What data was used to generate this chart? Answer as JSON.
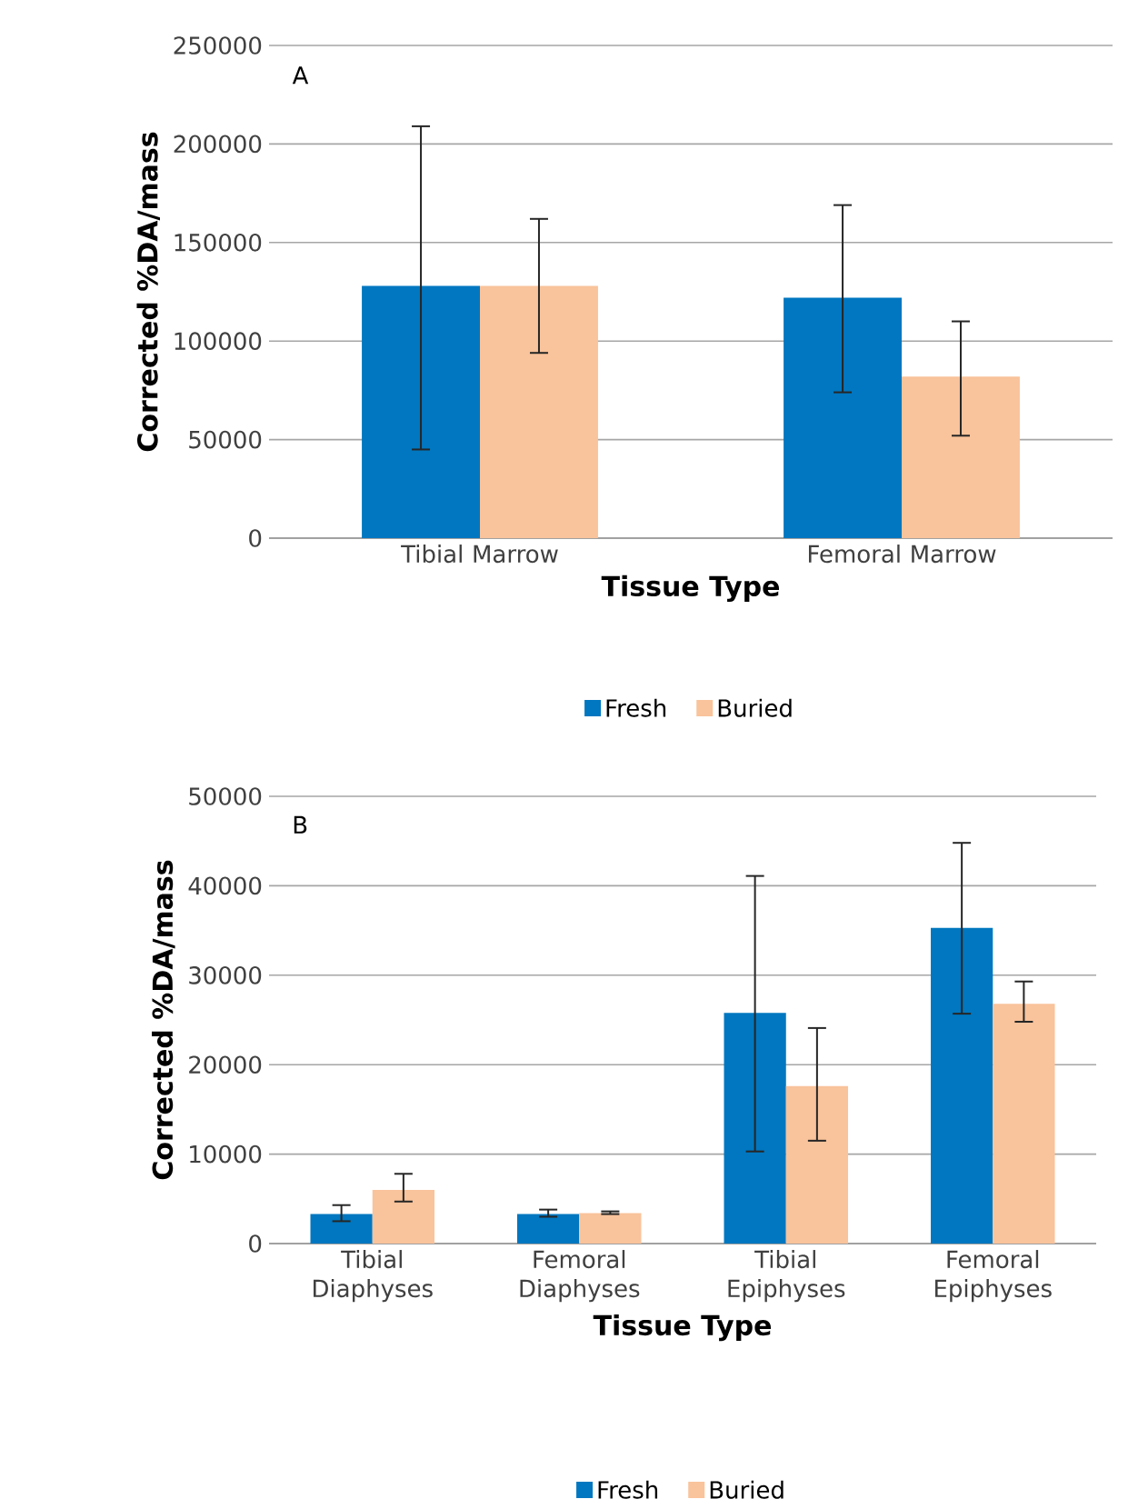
{
  "chart_data": [
    {
      "type": "bar",
      "xlabel": "Tissue Type",
      "ylabel": "Corrected %DA/mass",
      "categories": [
        "Tibial Marrow",
        "Femoral Marrow"
      ],
      "series": [
        {
          "name": "Fresh",
          "color": "#0077c0",
          "values": [
            128000,
            122000
          ],
          "errors": [
            [
              45000,
              209000
            ],
            [
              74000,
              169000
            ]
          ]
        },
        {
          "name": "Buried",
          "color": "#f9c39b",
          "values": [
            128000,
            82000
          ],
          "errors": [
            [
              94000,
              162000
            ],
            [
              52000,
              110000
            ]
          ]
        }
      ],
      "ylim": [
        0,
        250000
      ],
      "yticks": [
        0,
        50000,
        100000,
        150000,
        200000,
        250000
      ],
      "grid": "y",
      "legend": "bottom",
      "annotations": [
        "A"
      ]
    },
    {
      "type": "bar",
      "xlabel": "Tissue Type",
      "ylabel": "Corrected %DA/mass",
      "categories": [
        "Tibial Diaphyses",
        "Femoral Diaphyses",
        "Tibial Epiphyses",
        "Femoral Epiphyses"
      ],
      "series": [
        {
          "name": "Fresh",
          "color": "#0077c0",
          "values": [
            3300,
            3300,
            25800,
            35300
          ],
          "errors": [
            [
              2500,
              4300
            ],
            [
              3000,
              3800
            ],
            [
              10300,
              41100
            ],
            [
              25700,
              44800
            ]
          ]
        },
        {
          "name": "Buried",
          "color": "#f9c39b",
          "values": [
            6000,
            3400,
            17600,
            26800
          ],
          "errors": [
            [
              4700,
              7800
            ],
            [
              3300,
              3600
            ],
            [
              11500,
              24100
            ],
            [
              24800,
              29300
            ]
          ]
        }
      ],
      "ylim": [
        0,
        50000
      ],
      "yticks": [
        0,
        10000,
        20000,
        30000,
        40000,
        50000
      ],
      "grid": "y",
      "legend": "bottom",
      "annotations": [
        "B"
      ]
    }
  ]
}
